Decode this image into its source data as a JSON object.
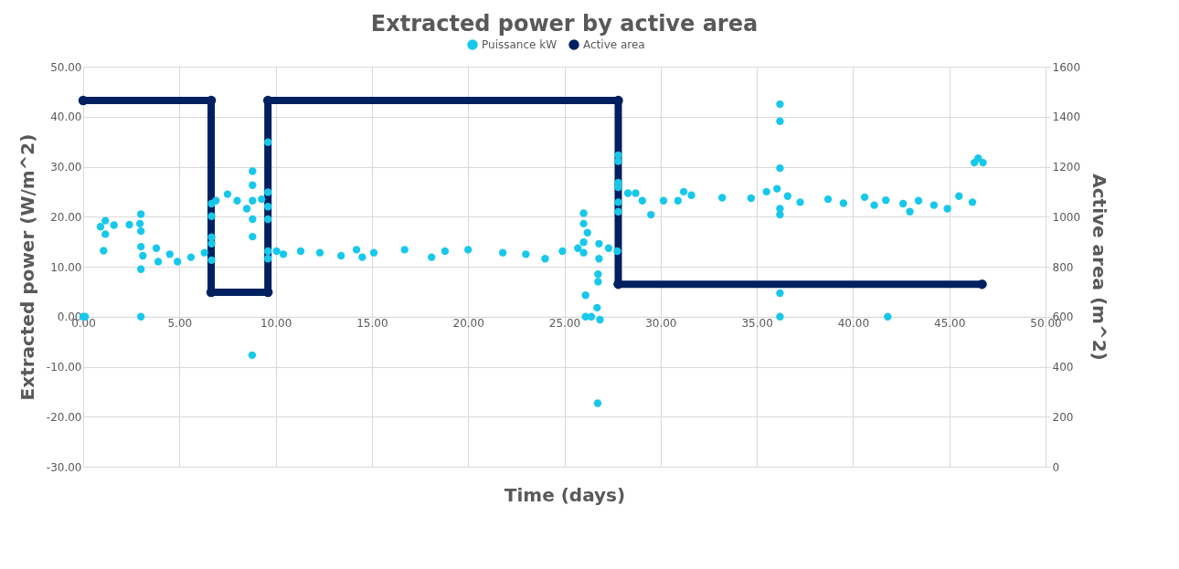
{
  "chart_data": {
    "type": "scatter",
    "title": "Extracted power by active area",
    "xlabel": "Time (days)",
    "ylabel": "Extracted power (W/m^2)",
    "y2label": "Active area (m^2)",
    "xlim": [
      0,
      50
    ],
    "xticks": [
      {
        "value": 0,
        "label": "0.00"
      },
      {
        "value": 5,
        "label": "5.00"
      },
      {
        "value": 10,
        "label": "10.00"
      },
      {
        "value": 15,
        "label": "15.00"
      },
      {
        "value": 20,
        "label": "20.00"
      },
      {
        "value": 25,
        "label": "25.00"
      },
      {
        "value": 30,
        "label": "30.00"
      },
      {
        "value": 35,
        "label": "35.00"
      },
      {
        "value": 40,
        "label": "40.00"
      },
      {
        "value": 45,
        "label": "45.00"
      },
      {
        "value": 50,
        "label": "50.00"
      }
    ],
    "ylim": [
      -30,
      50
    ],
    "yticks": [
      {
        "value": -30,
        "label": "-30.00"
      },
      {
        "value": -20,
        "label": "-20.00"
      },
      {
        "value": -10,
        "label": "-10.00"
      },
      {
        "value": 0,
        "label": "0.00"
      },
      {
        "value": 10,
        "label": "10.00"
      },
      {
        "value": 20,
        "label": "20.00"
      },
      {
        "value": 30,
        "label": "30.00"
      },
      {
        "value": 40,
        "label": "40.00"
      },
      {
        "value": 50,
        "label": "50.00"
      }
    ],
    "y2lim": [
      0,
      1600
    ],
    "y2ticks": [
      0,
      200,
      400,
      600,
      800,
      1000,
      1200,
      1400,
      1600
    ],
    "grid": true,
    "legend": "top",
    "marker": "circle",
    "series": [
      {
        "name": "Puissance kW",
        "color": "#17c8eb",
        "x": [
          0,
          0.1,
          0.9,
          1.06,
          1.15,
          1.15,
          1.6,
          2.4,
          2.95,
          3.0,
          3.0,
          3.0,
          3.0,
          3.0,
          3.1,
          3.8,
          3.9,
          4.5,
          4.9,
          5.6,
          6.3,
          6.67,
          6.67,
          6.67,
          6.67,
          6.67,
          6.9,
          7.5,
          8.0,
          8.5,
          8.78,
          8.8,
          8.8,
          8.8,
          8.8,
          8.8,
          9.27,
          9.6,
          9.6,
          9.6,
          9.6,
          9.6,
          9.6,
          10.05,
          10.4,
          11.3,
          12.3,
          13.4,
          14.2,
          14.5,
          15.1,
          16.7,
          18.1,
          18.8,
          20,
          21.8,
          23.0,
          24.0,
          24.9,
          25.7,
          26.0,
          26.0,
          26.0,
          26.0,
          26.1,
          26.1,
          26.2,
          26.4,
          26.7,
          26.73,
          26.75,
          26.75,
          26.8,
          26.8,
          26.85,
          27.3,
          27.75,
          27.8,
          27.8,
          27.8,
          27.8,
          27.8,
          27.8,
          28.3,
          28.7,
          29.05,
          29.5,
          30.15,
          30.9,
          31.2,
          31.6,
          33.2,
          34.7,
          35.5,
          36.05,
          36.2,
          36.2,
          36.2,
          36.2,
          36.2,
          36.2,
          36.2,
          36.6,
          37.25,
          38.7,
          39.5,
          40.6,
          41.1,
          41.7,
          41.8,
          42.6,
          42.95,
          43.4,
          44.2,
          44.9,
          45.5,
          46.2,
          46.3,
          46.5,
          46.75
        ],
        "values": [
          0,
          0,
          18.0,
          13.2,
          19.2,
          16.5,
          18.3,
          18.4,
          18.6,
          20.5,
          17.1,
          14.0,
          9.5,
          0,
          12.2,
          13.7,
          11.0,
          12.5,
          11.0,
          11.9,
          12.8,
          11.3,
          15.9,
          14.6,
          22.6,
          20.1,
          23.2,
          24.5,
          23.2,
          21.6,
          -7.7,
          19.5,
          23.2,
          26.3,
          29.1,
          16.0,
          23.5,
          22.0,
          24.9,
          34.9,
          19.5,
          11.6,
          13.1,
          13.1,
          12.5,
          13.1,
          12.8,
          12.2,
          13.4,
          11.9,
          12.8,
          13.4,
          11.9,
          13.1,
          13.4,
          12.8,
          12.5,
          11.6,
          13.1,
          13.7,
          14.9,
          12.8,
          20.7,
          18.6,
          4.3,
          0,
          16.8,
          0,
          1.8,
          -17.3,
          8.5,
          7.0,
          14.6,
          11.6,
          -0.6,
          13.7,
          13.1,
          32.3,
          31.1,
          26.8,
          25.9,
          22.9,
          21.0,
          24.7,
          24.7,
          23.2,
          20.4,
          23.2,
          23.2,
          25.0,
          24.3,
          23.8,
          23.7,
          25.0,
          25.6,
          42.5,
          39.1,
          29.7,
          20.4,
          21.6,
          4.7,
          0,
          24.1,
          22.9,
          23.5,
          22.7,
          23.9,
          22.3,
          23.3,
          0,
          22.6,
          21.0,
          23.2,
          22.3,
          21.6,
          24.1,
          22.9,
          30.8,
          31.7,
          30.8
        ]
      },
      {
        "name": "Active area",
        "type": "line",
        "axis": "y2",
        "color": "#002060",
        "x": [
          0,
          6.65,
          6.65,
          9.6,
          9.6,
          27.8,
          27.8,
          46.7
        ],
        "values": [
          1465,
          1465,
          698,
          698,
          1465,
          1465,
          730,
          730
        ]
      }
    ]
  }
}
